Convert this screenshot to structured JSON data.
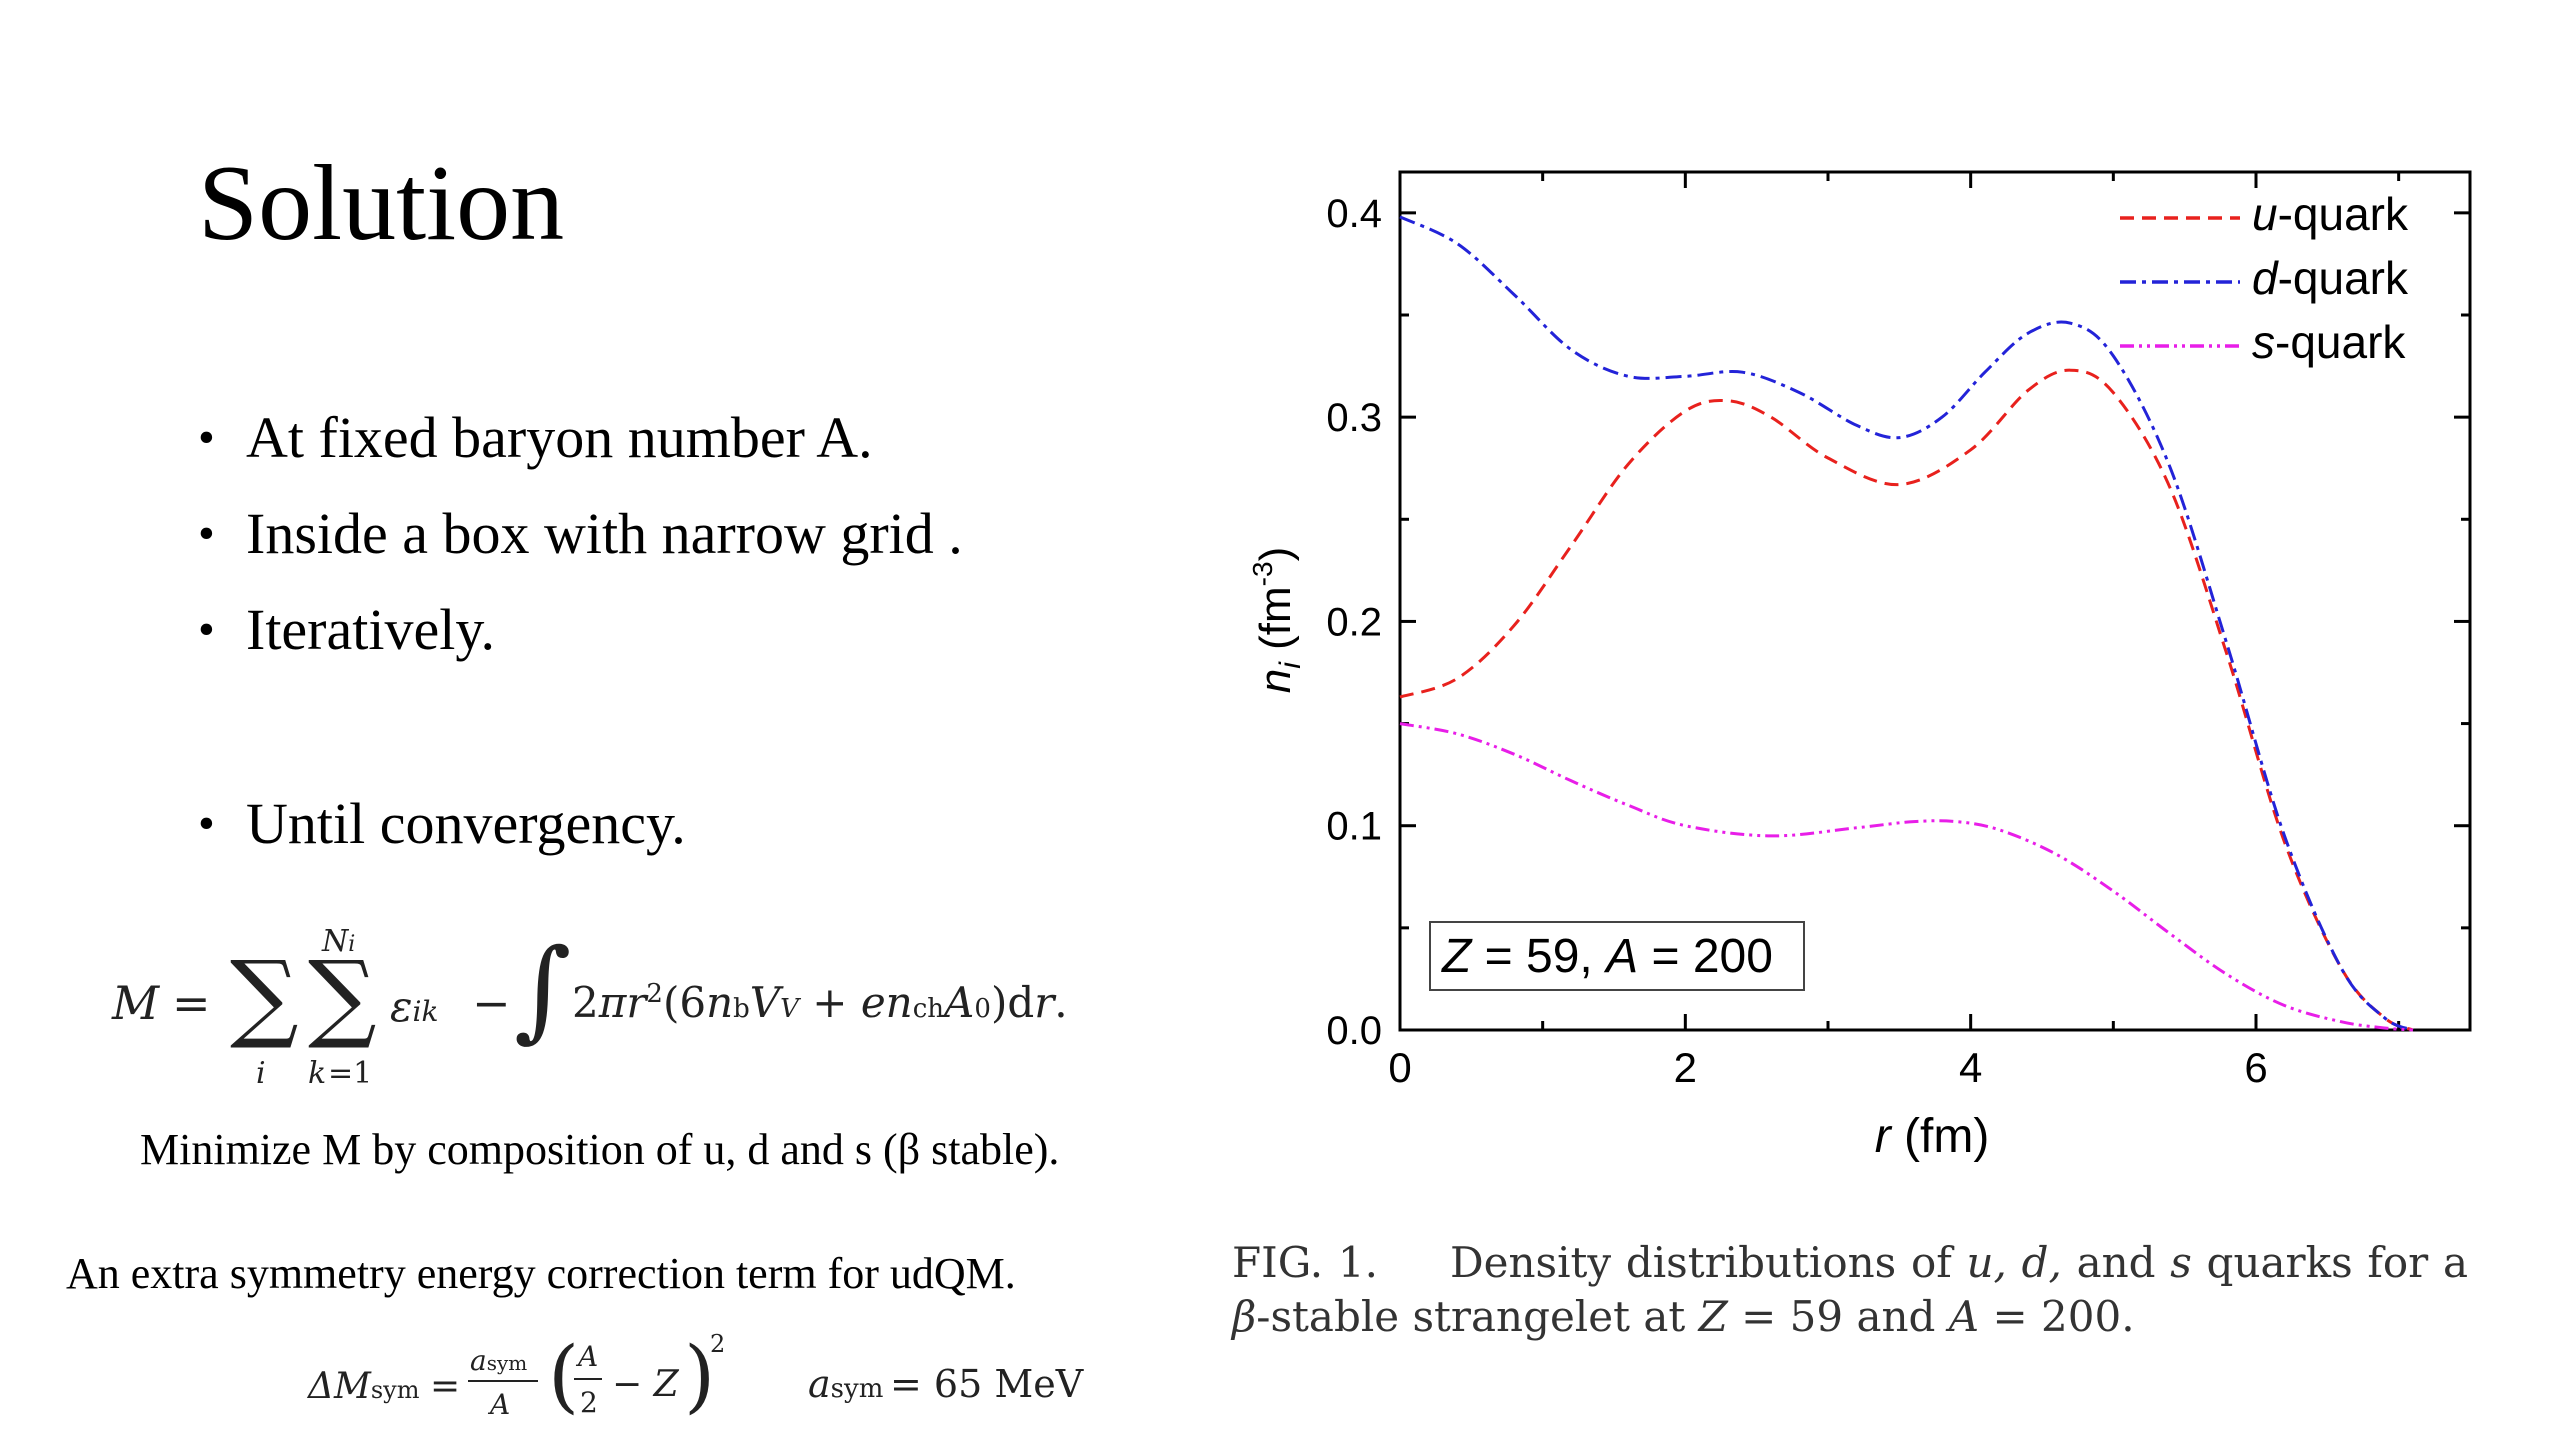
{
  "slide": {
    "title": "Solution",
    "bullets": [
      "At fixed baryon number A.",
      "Inside a box with narrow grid .",
      "Iteratively.",
      "Until convergency."
    ],
    "minimize_text": "Minimize M by composition of u, d and s (β stable).",
    "extra_text": "An extra symmetry energy correction term for udQM.",
    "asym_value": "= 65 MeV"
  },
  "caption": {
    "label": "FIG. 1.",
    "text_parts": [
      "Density distributions of ",
      "u, d,",
      " and ",
      "s",
      " quarks for a ",
      "β",
      "-stable strangelet at ",
      "Z",
      " = 59 and ",
      "A",
      " = 200."
    ]
  },
  "chart_data": {
    "type": "line",
    "xlabel": "(fm)",
    "xlabel_var": "r",
    "ylabel": "(fm",
    "ylabel_var": "n",
    "ylabel_sub": "i",
    "ylabel_sup": "-3",
    "ylabel_close": ")",
    "xlim": [
      0,
      7.5
    ],
    "ylim": [
      0,
      0.42
    ],
    "xticks": [
      0,
      2,
      4,
      6
    ],
    "xtick_labels": [
      "0",
      "2",
      "4",
      "6"
    ],
    "yticks": [
      0.0,
      0.1,
      0.2,
      0.3,
      0.4
    ],
    "ytick_labels": [
      "0.0",
      "0.1",
      "0.2",
      "0.3",
      "0.4"
    ],
    "annotation": {
      "parts": [
        "Z",
        " = 59, ",
        "A",
        " = 200"
      ]
    },
    "legend_position": "top-right",
    "series": [
      {
        "name": "u-quark",
        "name_var": "u",
        "name_rest": "-quark",
        "color": "#e8211d",
        "dash": "dashed",
        "x": [
          0,
          0.4,
          0.8,
          1.2,
          1.6,
          2.0,
          2.3,
          2.6,
          3.0,
          3.5,
          4.0,
          4.4,
          4.7,
          5.0,
          5.4,
          5.8,
          6.2,
          6.6,
          6.9,
          7.1
        ],
        "y": [
          0.163,
          0.172,
          0.198,
          0.237,
          0.277,
          0.303,
          0.308,
          0.3,
          0.28,
          0.267,
          0.284,
          0.313,
          0.323,
          0.312,
          0.265,
          0.183,
          0.092,
          0.03,
          0.006,
          0.0
        ]
      },
      {
        "name": "d-quark",
        "name_var": "d",
        "name_rest": "-quark",
        "color": "#2323d8",
        "dash": "dashdot",
        "x": [
          0,
          0.4,
          0.8,
          1.2,
          1.6,
          2.0,
          2.4,
          2.8,
          3.2,
          3.5,
          3.8,
          4.1,
          4.4,
          4.7,
          5.0,
          5.4,
          5.8,
          6.2,
          6.6,
          6.9,
          7.1
        ],
        "y": [
          0.398,
          0.385,
          0.36,
          0.333,
          0.32,
          0.32,
          0.322,
          0.312,
          0.296,
          0.29,
          0.3,
          0.322,
          0.341,
          0.346,
          0.33,
          0.275,
          0.188,
          0.095,
          0.03,
          0.006,
          0.0
        ]
      },
      {
        "name": "s-quark",
        "name_var": "s",
        "name_rest": "-quark",
        "color": "#e81ee8",
        "dash": "dashdotdot",
        "x": [
          0,
          0.4,
          0.8,
          1.2,
          1.6,
          2.0,
          2.6,
          3.2,
          3.6,
          3.9,
          4.2,
          4.6,
          5.0,
          5.4,
          5.8,
          6.2,
          6.6,
          6.9,
          7.1
        ],
        "y": [
          0.15,
          0.145,
          0.135,
          0.122,
          0.11,
          0.1,
          0.095,
          0.099,
          0.102,
          0.102,
          0.098,
          0.086,
          0.068,
          0.047,
          0.027,
          0.012,
          0.004,
          0.001,
          0.0
        ]
      }
    ]
  }
}
